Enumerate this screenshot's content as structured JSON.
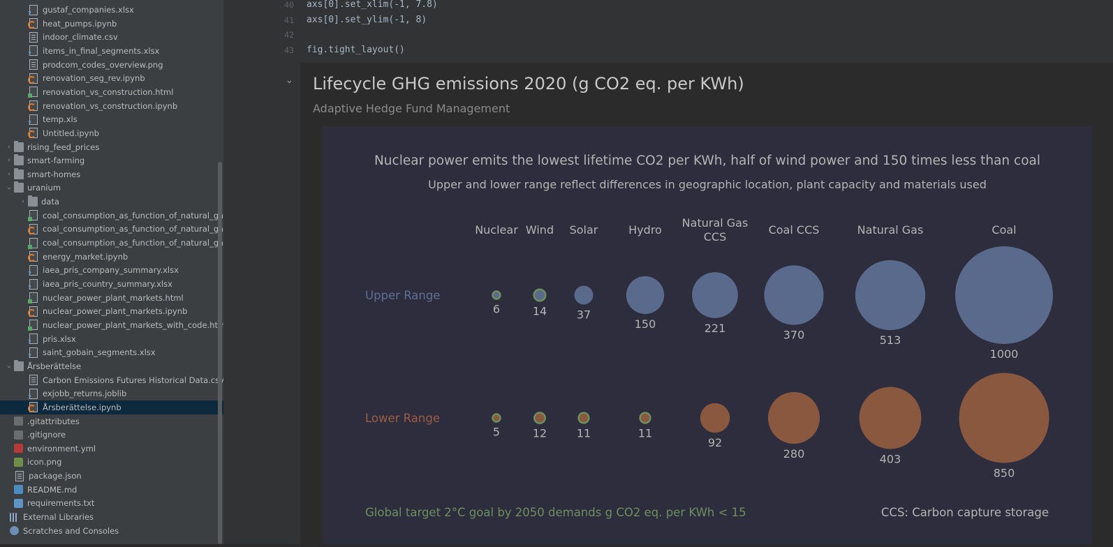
{
  "project_tree": {
    "items": [
      {
        "name": "gustaf_companies.xlsx",
        "type": "xlsx",
        "indent": 2
      },
      {
        "name": "heat_pumps.ipynb",
        "type": "ipynb",
        "indent": 2
      },
      {
        "name": "indoor_climate.csv",
        "type": "file",
        "indent": 2
      },
      {
        "name": "items_in_final_segments.xlsx",
        "type": "xlsx",
        "indent": 2
      },
      {
        "name": "prodcom_codes_overview.png",
        "type": "file",
        "indent": 2
      },
      {
        "name": "renovation_seg_rev.ipynb",
        "type": "ipynb",
        "indent": 2
      },
      {
        "name": "renovation_vs_construction.html",
        "type": "html",
        "indent": 2
      },
      {
        "name": "renovation_vs_construction.ipynb",
        "type": "ipynb",
        "indent": 2
      },
      {
        "name": "temp.xls",
        "type": "xlsx",
        "indent": 2
      },
      {
        "name": "Untitled.ipynb",
        "type": "ipynb",
        "indent": 2
      },
      {
        "name": "rising_feed_prices",
        "type": "folder",
        "indent": 1,
        "chevron": "›"
      },
      {
        "name": "smart-farming",
        "type": "folder",
        "indent": 1,
        "chevron": "›"
      },
      {
        "name": "smart-homes",
        "type": "folder",
        "indent": 1,
        "chevron": "›"
      },
      {
        "name": "uranium",
        "type": "folder",
        "indent": 1,
        "chevron": "⌄"
      },
      {
        "name": "data",
        "type": "folder",
        "indent": 2,
        "chevron": "›"
      },
      {
        "name": "coal_consumption_as_function_of_natural_gas.html",
        "type": "html",
        "indent": 2
      },
      {
        "name": "coal_consumption_as_function_of_natural_gas.ipynb",
        "type": "ipynb",
        "indent": 2
      },
      {
        "name": "coal_consumption_as_function_of_natural_gas_with_code.html",
        "type": "html",
        "indent": 2
      },
      {
        "name": "energy_market.ipynb",
        "type": "ipynb",
        "indent": 2
      },
      {
        "name": "iaea_pris_company_summary.xlsx",
        "type": "xlsx",
        "indent": 2
      },
      {
        "name": "iaea_pris_country_summary.xlsx",
        "type": "xlsx",
        "indent": 2
      },
      {
        "name": "nuclear_power_plant_markets.html",
        "type": "html",
        "indent": 2
      },
      {
        "name": "nuclear_power_plant_markets.ipynb",
        "type": "ipynb",
        "indent": 2
      },
      {
        "name": "nuclear_power_plant_markets_with_code.html",
        "type": "html",
        "indent": 2
      },
      {
        "name": "pris.xlsx",
        "type": "xlsx",
        "indent": 2
      },
      {
        "name": "saint_gobain_segments.xlsx",
        "type": "xlsx",
        "indent": 2
      },
      {
        "name": "Årsberättelse",
        "type": "folder",
        "indent": 1,
        "chevron": "⌄"
      },
      {
        "name": "Carbon Emissions Futures Historical Data.csv",
        "type": "file",
        "indent": 2
      },
      {
        "name": "exjobb_returns.joblib",
        "type": "xlsx",
        "indent": 2
      },
      {
        "name": "Årsberättelse.ipynb",
        "type": "ipynb",
        "indent": 2,
        "selected": true
      },
      {
        "name": ".gitattributes",
        "type": "git",
        "indent": 1
      },
      {
        "name": ".gitignore",
        "type": "git",
        "indent": 1
      },
      {
        "name": "environment.yml",
        "type": "yml",
        "indent": 1
      },
      {
        "name": "icon.png",
        "type": "img",
        "indent": 1
      },
      {
        "name": "package.json",
        "type": "file",
        "indent": 1
      },
      {
        "name": "README.md",
        "type": "md",
        "indent": 1
      },
      {
        "name": "requirements.txt",
        "type": "txt",
        "indent": 1
      },
      {
        "name": "External Libraries",
        "type": "lib",
        "indent": 0
      },
      {
        "name": "Scratches and Consoles",
        "type": "scratch",
        "indent": 0
      }
    ]
  },
  "code": {
    "lines": [
      {
        "no": "40",
        "text": "axs[0].set_xlim(-1, 7.8)"
      },
      {
        "no": "41",
        "text": "axs[0].set_ylim(-1, 8)"
      },
      {
        "no": "42",
        "text": ""
      },
      {
        "no": "43",
        "text": "fig.tight_layout()"
      }
    ]
  },
  "output": {
    "title": "Lifecycle GHG emissions 2020 (g CO2 eq. per KWh)",
    "subtitle": "Adaptive Hedge Fund Management"
  },
  "chart_data": {
    "type": "scatter",
    "title": "Nuclear power emits the lowest lifetime CO2 per KWh, half of wind power and 150 times less than coal",
    "subtitle": "Upper and lower range reflect differences in geographic location, plant capacity and materials used",
    "categories": [
      "Nuclear",
      "Wind",
      "Solar",
      "Hydro",
      "Natural Gas\nCCS",
      "Coal CCS",
      "Natural Gas",
      "Coal"
    ],
    "series": [
      {
        "name": "Upper Range",
        "values": [
          6,
          14,
          37,
          150,
          221,
          370,
          513,
          1000
        ],
        "color": "#5a6a8c"
      },
      {
        "name": "Lower Range",
        "values": [
          5,
          12,
          11,
          11,
          92,
          280,
          403,
          850
        ],
        "color": "#8a583f"
      }
    ],
    "highlight_color": "#6c8f5e",
    "highlight_threshold": 15,
    "footnote_left": "Global target 2°C goal by 2050 demands g CO2 eq. per KWh < 15",
    "footnote_right": "CCS: Carbon capture storage",
    "grid": false
  }
}
